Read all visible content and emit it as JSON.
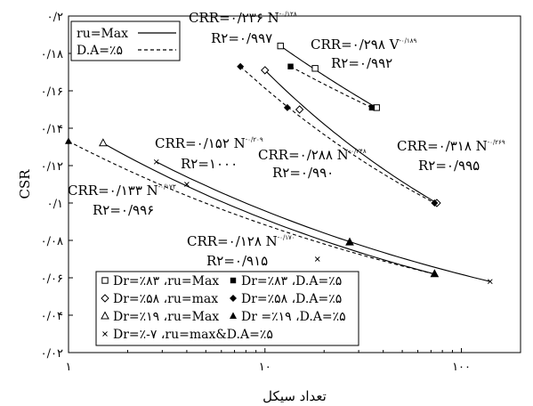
{
  "chart_data": {
    "type": "scatter",
    "title": "",
    "xlabel": "تعداد سیکل",
    "ylabel": "CSR",
    "xscale": "log",
    "xlim": [
      1,
      200
    ],
    "ylim": [
      0.02,
      0.2
    ],
    "grid": false,
    "x_tick_labels": [
      "۱",
      "۱۰",
      "۱۰۰"
    ],
    "y_tick_labels": [
      "۰/۰۲",
      "۰/۰۴",
      "۰/۰۶",
      "۰/۰۸",
      "۰/۱",
      "۰/۱۲",
      "۰/۱۴",
      "۰/۱۶",
      "۰/۱۸",
      "۰/۲"
    ],
    "legend_placement": "top-left and bottom-left",
    "line_legend": [
      {
        "label": "ru=Max",
        "style": "solid"
      },
      {
        "label": "D.A=٪۵",
        "style": "dashed"
      }
    ],
    "marker_legend": [
      {
        "label": "Dr=٪۸۳ ،ru=Max",
        "marker": "square-open"
      },
      {
        "label": "Dr=٪۸۳ ،D.A=٪۵",
        "marker": "square-filled"
      },
      {
        "label": "Dr=٪۵۸ ،ru=max",
        "marker": "diamond-open"
      },
      {
        "label": "Dr=٪۵۸ ،D.A=٪۵",
        "marker": "diamond-filled"
      },
      {
        "label": "Dr=٪۱۹ ،ru=Max",
        "marker": "triangle-open"
      },
      {
        "label": "Dr =٪۱۹ ،D.A=٪۵",
        "marker": "triangle-filled"
      },
      {
        "label": "Dr=٪-۷ ،ru=max&D.A=٪۵",
        "marker": "x"
      }
    ],
    "series": [
      {
        "name": "Dr=٪۸۳ ،ru=Max",
        "marker": "square-open",
        "line": "solid",
        "points": [
          [
            12,
            0.184
          ],
          [
            18,
            0.172
          ],
          [
            37,
            0.151
          ]
        ]
      },
      {
        "name": "Dr=٪۸۳ ،D.A=٪۵",
        "marker": "square-filled",
        "line": "dashed",
        "points": [
          [
            13.5,
            0.173
          ],
          [
            35,
            0.151
          ]
        ]
      },
      {
        "name": "Dr=٪۵۸ ،ru=max",
        "marker": "diamond-open",
        "line": "solid",
        "points": [
          [
            10,
            0.171
          ],
          [
            15,
            0.15
          ],
          [
            75,
            0.1
          ]
        ]
      },
      {
        "name": "Dr=٪۵۸ ،D.A=٪۵",
        "marker": "diamond-filled",
        "line": "dashed",
        "points": [
          [
            7.5,
            0.173
          ],
          [
            13,
            0.151
          ],
          [
            73,
            0.1
          ]
        ]
      },
      {
        "name": "Dr=٪۱۹ ،ru=Max",
        "marker": "triangle-open",
        "line": "solid",
        "points": [
          [
            1.5,
            0.132
          ],
          [
            27,
            0.079
          ],
          [
            73,
            0.062
          ]
        ]
      },
      {
        "name": "Dr =٪۱۹ ،D.A=٪۵",
        "marker": "triangle-filled",
        "line": "dashed",
        "points": [
          [
            1,
            0.133
          ],
          [
            27,
            0.079
          ],
          [
            73,
            0.062
          ]
        ]
      },
      {
        "name": "Dr=٪-۷ ،ru=max&D.A=٪۵",
        "marker": "x",
        "line": "solid",
        "points": [
          [
            2.8,
            0.122
          ],
          [
            4,
            0.11
          ],
          [
            18.5,
            0.07
          ],
          [
            140,
            0.058
          ]
        ]
      }
    ],
    "annotations": [
      {
        "main": "CRR=۰/۲۳۶ N",
        "exp": "-۰/۱۲۸",
        "r2": "R۲=۰/۹۹۷"
      },
      {
        "main": "CRR=۰/۲۹۸ V",
        "exp": "-۰/۱۸۹",
        "r2": "R۲=۰/۹۹۲"
      },
      {
        "main": "CRR=۰/۱۵۲ N",
        "exp": "-۰/۲۰۹",
        "r2": "R۲=۱۰۰۰"
      },
      {
        "main": "CRR=۰/۲۸۸ N",
        "exp": "-۰/۲۴۸",
        "r2": "R۲=۰/۹۹۰"
      },
      {
        "main": "CRR=۰/۳۱۸ N",
        "exp": "-۰/۲۶۹",
        "r2": "R۲=۰/۹۹۵"
      },
      {
        "main": "CRR=۰/۱۳۳ N",
        "exp": "-۰/۱۷۳",
        "r2": "R۲=۰/۹۹۶"
      },
      {
        "main": "CRR=۰/۱۲۸ N",
        "exp": "-۰/۱۷۰",
        "r2": "R۲=۰/۹۱۵"
      }
    ]
  }
}
